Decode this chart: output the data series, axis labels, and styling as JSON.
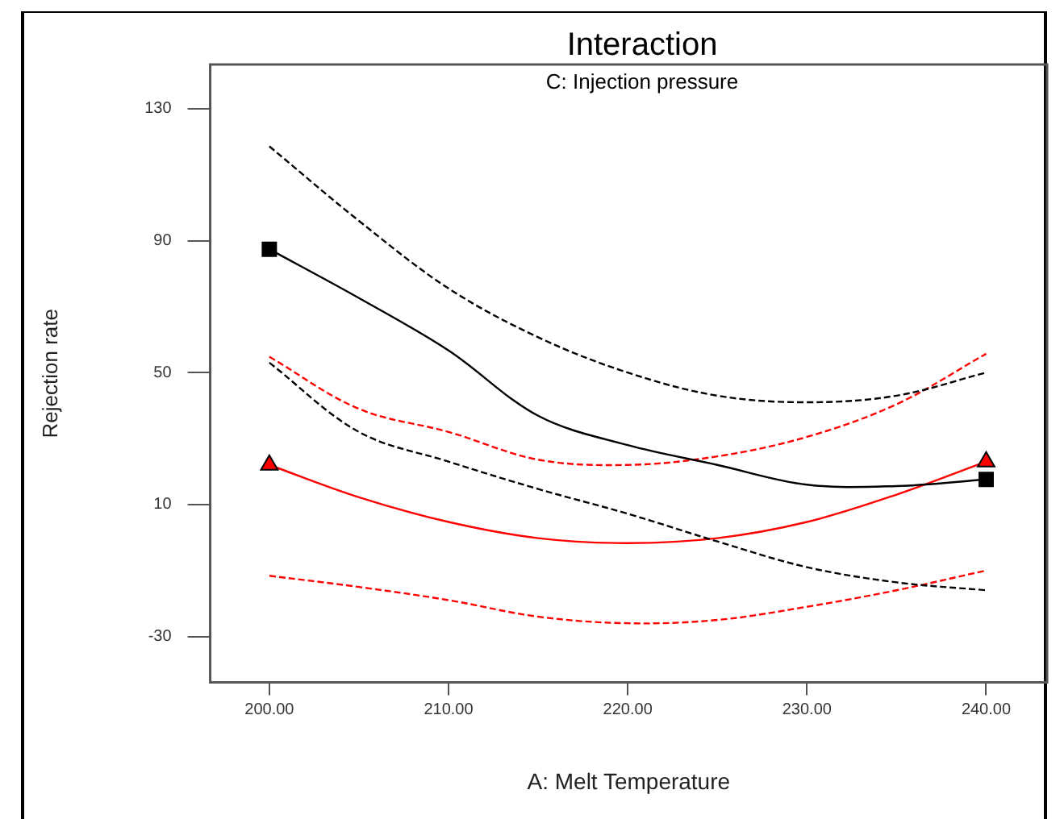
{
  "chart_data": {
    "type": "line",
    "title": "Interaction",
    "subtitle": "C: Injection pressure",
    "xlabel": "A: Melt Temperature",
    "ylabel": "Rejection rate",
    "xlim": [
      196.7,
      243.4
    ],
    "xticks": [
      {
        "value": 200,
        "label": "200.00"
      },
      {
        "value": 210,
        "label": "210.00"
      },
      {
        "value": 220,
        "label": "220.00"
      },
      {
        "value": 230,
        "label": "230.00"
      },
      {
        "value": 240,
        "label": "240.00"
      }
    ],
    "ylim": [
      -43.9,
      143.4
    ],
    "yticks": [
      -30,
      10,
      50,
      90,
      130
    ],
    "grid": false,
    "legend": false,
    "x": [
      200,
      205,
      210,
      215,
      220,
      225,
      230,
      235,
      240
    ],
    "series": [
      {
        "color": "#000000",
        "line_style": "solid",
        "marker": "none",
        "values": [
          87.4,
          72.6,
          56.7,
          36.9,
          28,
          22,
          16,
          15.6,
          17.6
        ]
      },
      {
        "color": "#000000",
        "line_style": "dashed",
        "marker": "none",
        "values": [
          118.6,
          96,
          75.5,
          60.7,
          50,
          43,
          41,
          43,
          50
        ]
      },
      {
        "color": "#000000",
        "line_style": "dashed",
        "marker": "none",
        "values": [
          53,
          32,
          23,
          14.7,
          7.2,
          -1.2,
          -9,
          -13.6,
          -16
        ]
      },
      {
        "color": "#ff0000",
        "line_style": "solid",
        "marker": "none",
        "values": [
          22,
          12.2,
          4.7,
          -0.2,
          -1.7,
          -0.2,
          4.7,
          13,
          23
        ]
      },
      {
        "color": "#ff0000",
        "line_style": "dashed",
        "marker": "none",
        "values": [
          54.8,
          39,
          32,
          23.6,
          22,
          24.6,
          30.5,
          40.4,
          55.7
        ]
      },
      {
        "color": "#ff0000",
        "line_style": "dashed",
        "marker": "none",
        "values": [
          -11.6,
          -15,
          -19,
          -24,
          -26,
          -25,
          -21,
          -16,
          -10
        ]
      },
      {
        "type": "scatter",
        "color": "#000000",
        "marker": "square",
        "values": [
          87.4,
          null,
          null,
          null,
          null,
          null,
          null,
          null,
          17.6
        ]
      },
      {
        "type": "scatter",
        "color": "#ff0000",
        "marker": "triangle",
        "values": [
          22,
          null,
          null,
          null,
          null,
          null,
          null,
          null,
          23
        ]
      }
    ]
  }
}
